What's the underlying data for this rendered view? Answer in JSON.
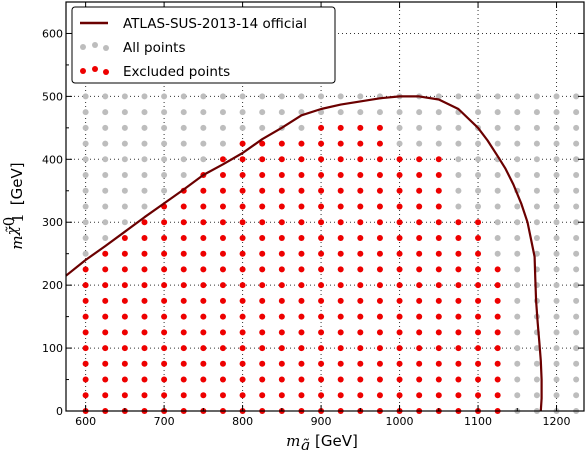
{
  "chart_data": {
    "type": "scatter",
    "title": "",
    "xlabel": {
      "var": "m",
      "sub": "g̃",
      "unit": "[GeV]"
    },
    "ylabel": {
      "var": "m",
      "sub": "χ̃",
      "sup": "0",
      "subnum": "1",
      "unit": "[GeV]"
    },
    "xlim": [
      575,
      1235
    ],
    "ylim": [
      0,
      650
    ],
    "xticks": [
      600,
      700,
      800,
      900,
      1000,
      1100,
      1200
    ],
    "yticks": [
      0,
      100,
      200,
      300,
      400,
      500,
      600
    ],
    "grid": true,
    "legend": {
      "placement": "top-left",
      "entries": [
        "ATLAS-SUS-2013-14 official",
        "All points",
        "Excluded points"
      ]
    },
    "colors": {
      "official": "#6b0000",
      "all_points": "#bdbdbd",
      "excluded_points": "#ee0000",
      "grid": "#333333"
    },
    "grid_points": {
      "x_start": 600,
      "x_step": 25,
      "x_end": 1225,
      "y_start": 0,
      "y_step": 25,
      "y_end": 500
    },
    "official_contour": {
      "x": [
        575,
        600,
        625,
        650,
        675,
        700,
        725,
        750,
        775,
        800,
        825,
        850,
        875,
        900,
        925,
        950,
        975,
        1000,
        1025,
        1050,
        1075,
        1100,
        1112,
        1125,
        1135,
        1145,
        1155,
        1163,
        1168,
        1172,
        1173,
        1174,
        1176,
        1178,
        1180,
        1181,
        1181,
        1180
      ],
      "y": [
        215,
        240,
        262,
        285,
        308,
        330,
        352,
        375,
        392,
        410,
        432,
        450,
        470,
        480,
        487,
        492,
        497,
        500,
        500,
        495,
        480,
        450,
        430,
        405,
        385,
        360,
        330,
        300,
        270,
        245,
        210,
        175,
        140,
        110,
        80,
        50,
        20,
        0
      ]
    },
    "excluded_boundary": {
      "x": [
        600,
        625,
        650,
        675,
        700,
        725,
        750,
        775,
        800,
        825,
        850,
        875,
        900,
        925,
        950,
        975,
        1000,
        1025,
        1050,
        1075,
        1100,
        1125
      ],
      "ymax": [
        225,
        250,
        275,
        300,
        325,
        350,
        375,
        400,
        425,
        425,
        425,
        425,
        450,
        450,
        450,
        450,
        400,
        400,
        400,
        300,
        300,
        225
      ]
    }
  }
}
